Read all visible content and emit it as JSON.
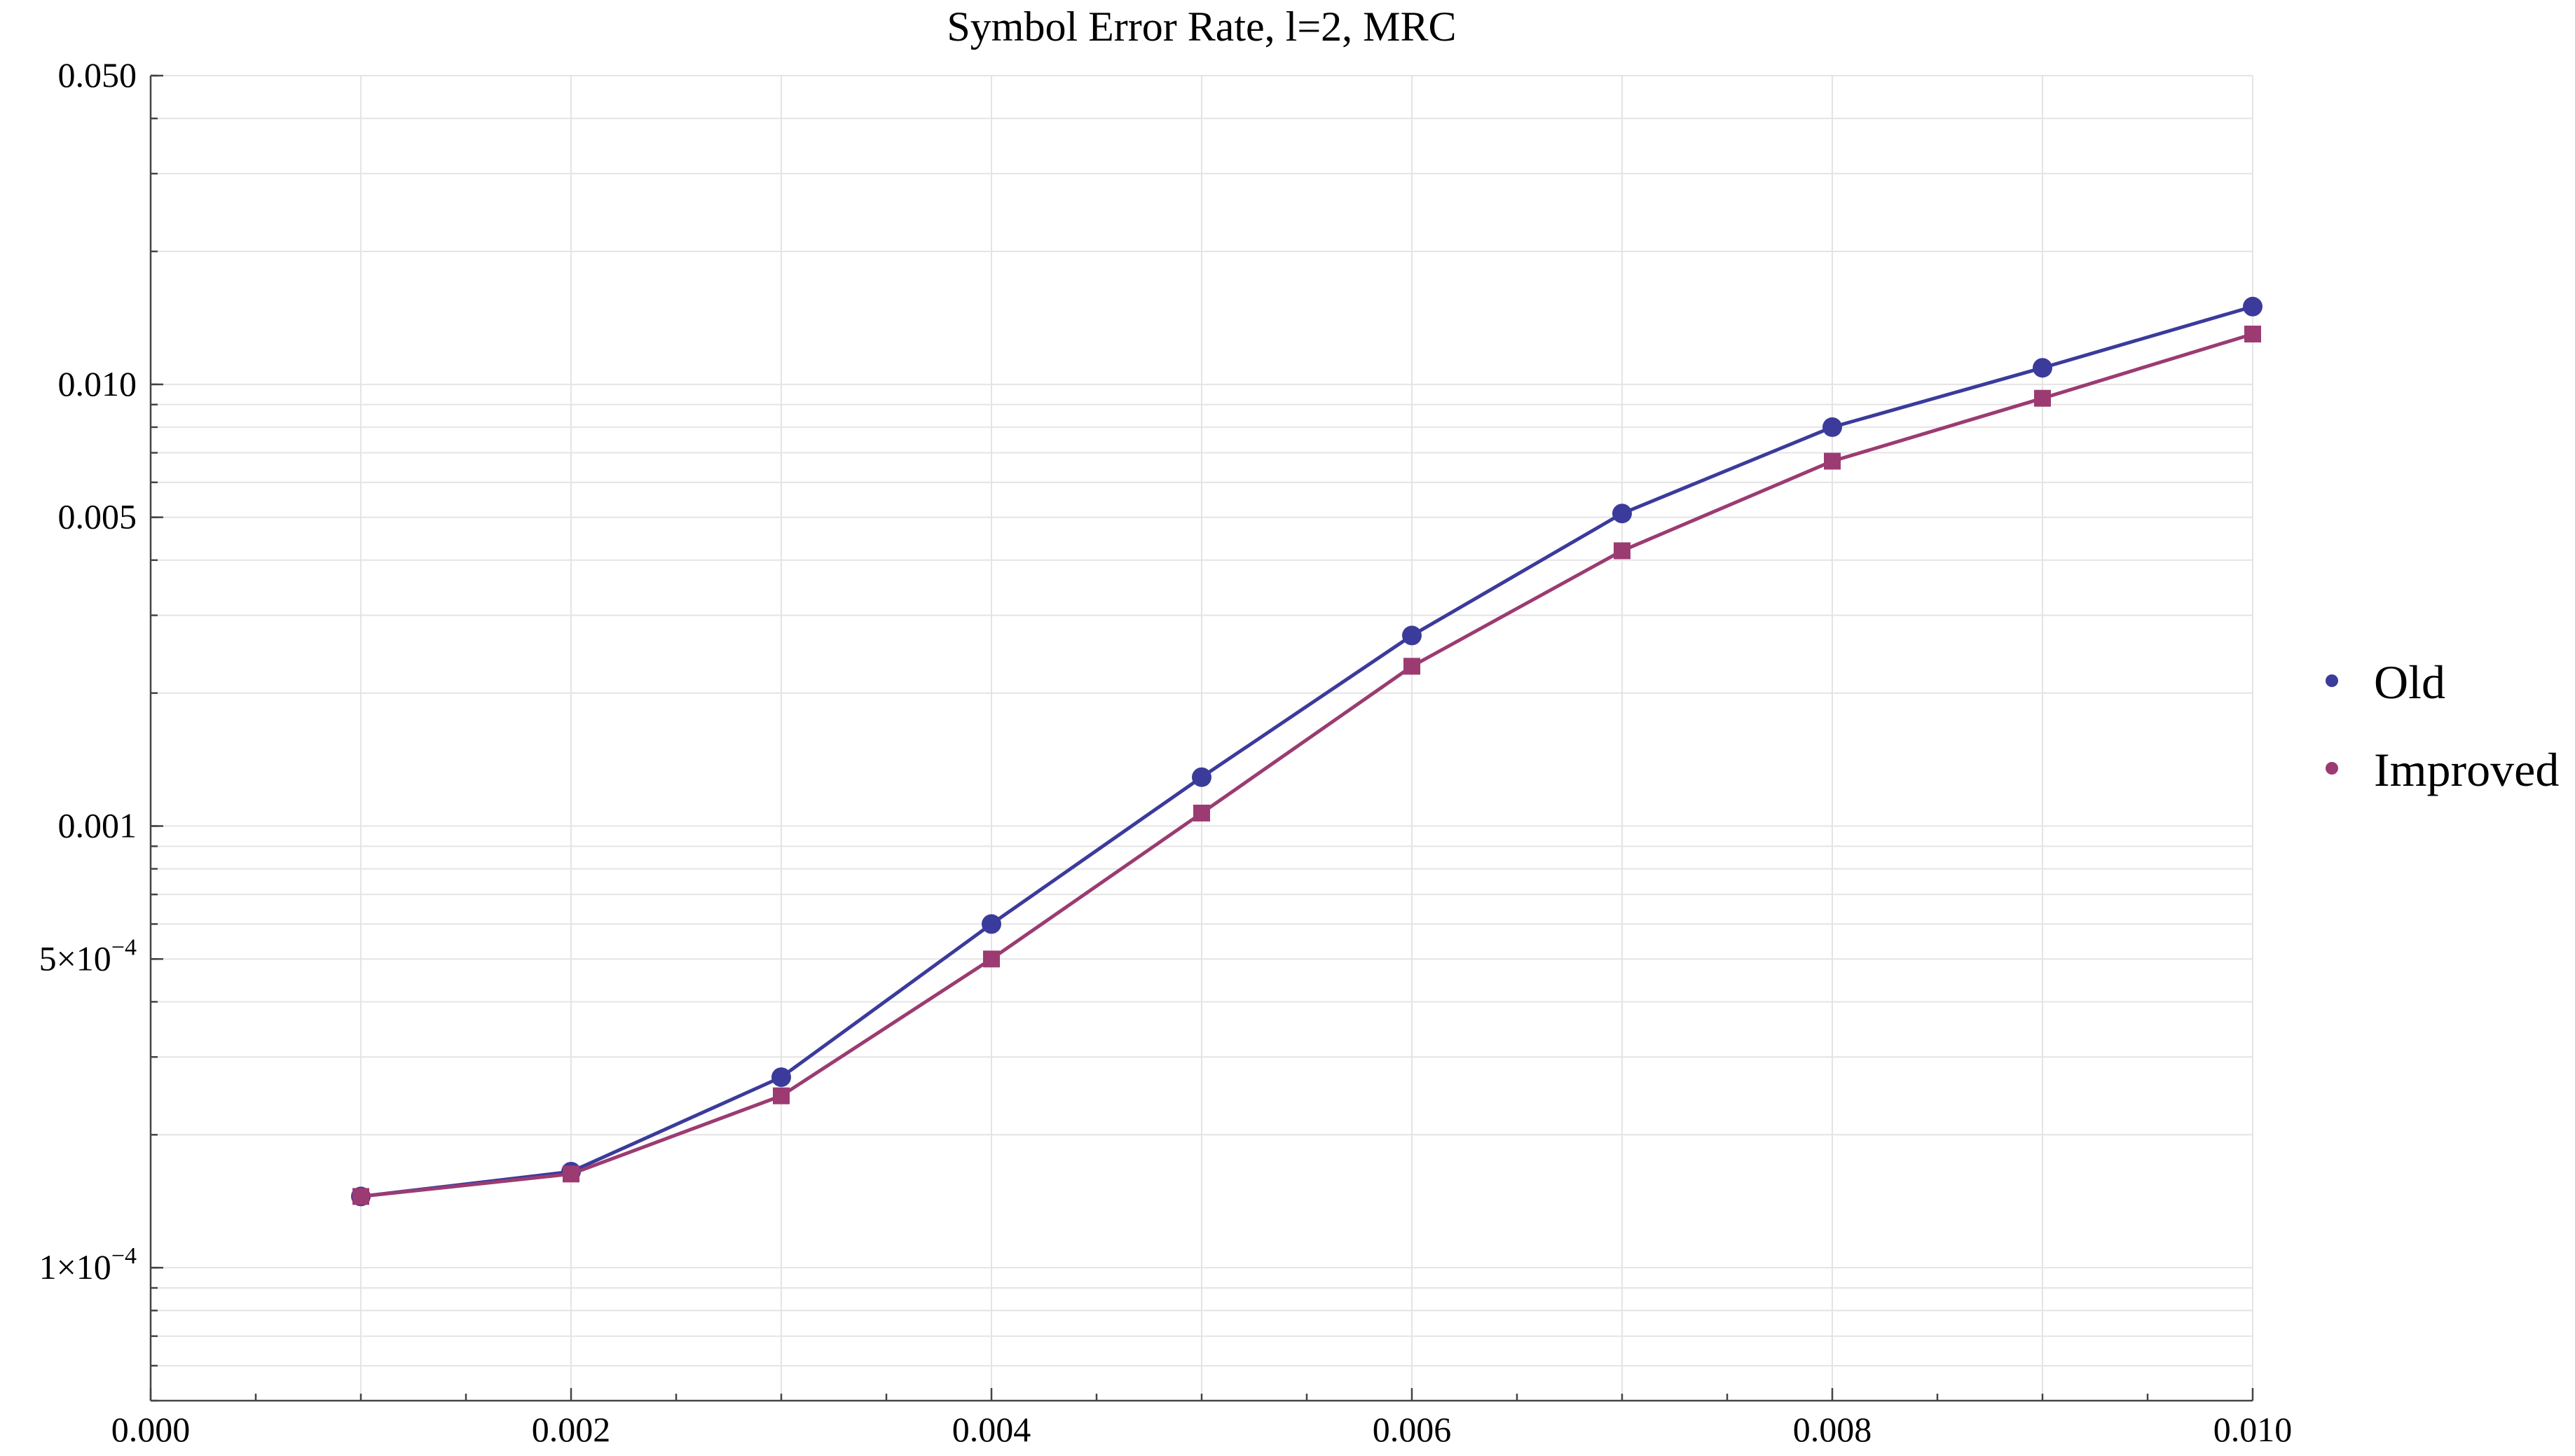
{
  "chart_data": {
    "type": "line",
    "title": "Symbol Error Rate, l=2, MRC",
    "xlabel": "",
    "ylabel": "",
    "y_scale": "log",
    "grid": true,
    "legend_placement": "right",
    "xlim": [
      0.0,
      0.01
    ],
    "ylim": [
      5e-05,
      0.05
    ],
    "x_ticks": [
      {
        "value": 0.0,
        "label": "0.000"
      },
      {
        "value": 0.002,
        "label": "0.002"
      },
      {
        "value": 0.004,
        "label": "0.004"
      },
      {
        "value": 0.006,
        "label": "0.006"
      },
      {
        "value": 0.008,
        "label": "0.008"
      },
      {
        "value": 0.01,
        "label": "0.010"
      }
    ],
    "y_ticks": [
      {
        "value": 0.05,
        "label": "0.050"
      },
      {
        "value": 0.01,
        "label": "0.010"
      },
      {
        "value": 0.005,
        "label": "0.005"
      },
      {
        "value": 0.001,
        "label": "0.001"
      },
      {
        "value": 0.0005,
        "label": "5×10",
        "exponent": "−4"
      },
      {
        "value": 0.0001,
        "label": "1×10",
        "exponent": "−4"
      }
    ],
    "x": [
      0.001,
      0.002,
      0.003,
      0.004,
      0.005,
      0.006,
      0.007,
      0.008,
      0.009,
      0.01
    ],
    "series": [
      {
        "name": "Old",
        "color": "#3b3b9c",
        "marker": "circle",
        "values": [
          0.000145,
          0.000165,
          0.00027,
          0.0006,
          0.00129,
          0.0027,
          0.0051,
          0.008,
          0.0109,
          0.015
        ]
      },
      {
        "name": "Improved",
        "color": "#9b3b72",
        "marker": "square",
        "values": [
          0.000145,
          0.000163,
          0.000245,
          0.0005,
          0.00107,
          0.0023,
          0.0042,
          0.0067,
          0.0093,
          0.013
        ]
      }
    ]
  }
}
